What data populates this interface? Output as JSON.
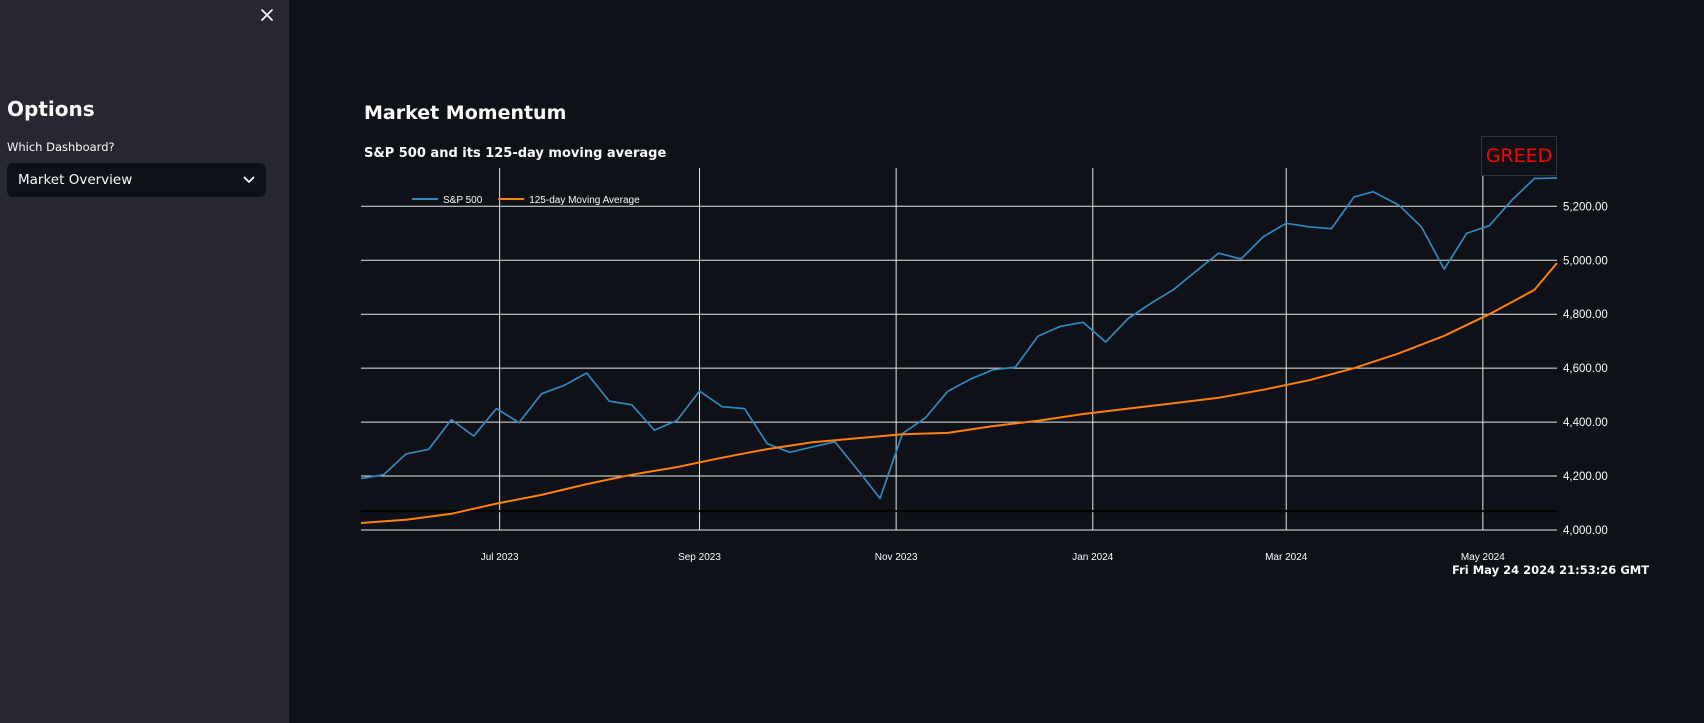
{
  "sidebar": {
    "title": "Options",
    "select_label": "Which Dashboard?",
    "select_value": "Market Overview"
  },
  "main": {
    "title": "Market Momentum",
    "sentiment_badge": "GREED",
    "timestamp": "Fri May 24 2024 21:53:26 GMT"
  },
  "colors": {
    "sp500": "#3288bd",
    "moving_average": "#ff7f0e",
    "badge": "#ff0000"
  },
  "chart_data": {
    "type": "line",
    "title": "S&P 500 and its 125-day moving average",
    "x_range": [
      "2023-05-19",
      "2024-05-24"
    ],
    "ylim": [
      4000,
      5342
    ],
    "y_ticks": [
      4000,
      4200,
      4400,
      4600,
      4800,
      5000,
      5200
    ],
    "y_tick_labels": [
      "4,000.00",
      "4,200.00",
      "4,400.00",
      "4,600.00",
      "4,800.00",
      "5,000.00",
      "5,200.00"
    ],
    "x_ticks": [
      "2023-07-01",
      "2023-09-01",
      "2023-11-01",
      "2024-01-01",
      "2024-03-01",
      "2024-05-01"
    ],
    "x_tick_labels": [
      "Jul 2023",
      "Sep 2023",
      "Nov 2023",
      "Jan 2024",
      "Mar 2024",
      "May 2024"
    ],
    "grid": true,
    "reference_line": 4070,
    "legend_position": "top-left",
    "series": [
      {
        "name": "S&P 500",
        "x": [
          "2023-05-19",
          "2023-05-26",
          "2023-06-02",
          "2023-06-09",
          "2023-06-16",
          "2023-06-23",
          "2023-06-30",
          "2023-07-07",
          "2023-07-14",
          "2023-07-21",
          "2023-07-28",
          "2023-08-04",
          "2023-08-11",
          "2023-08-18",
          "2023-08-25",
          "2023-09-01",
          "2023-09-08",
          "2023-09-15",
          "2023-09-22",
          "2023-09-29",
          "2023-10-06",
          "2023-10-13",
          "2023-10-20",
          "2023-10-27",
          "2023-11-03",
          "2023-11-10",
          "2023-11-17",
          "2023-11-24",
          "2023-12-01",
          "2023-12-08",
          "2023-12-15",
          "2023-12-22",
          "2023-12-29",
          "2024-01-05",
          "2024-01-12",
          "2024-01-19",
          "2024-01-26",
          "2024-02-02",
          "2024-02-09",
          "2024-02-16",
          "2024-02-23",
          "2024-03-01",
          "2024-03-08",
          "2024-03-15",
          "2024-03-22",
          "2024-03-28",
          "2024-04-05",
          "2024-04-12",
          "2024-04-19",
          "2024-04-26",
          "2024-05-03",
          "2024-05-10",
          "2024-05-17",
          "2024-05-24"
        ],
        "y": [
          4191,
          4205,
          4282,
          4299,
          4409,
          4348,
          4450,
          4398,
          4505,
          4536,
          4582,
          4478,
          4464,
          4370,
          4406,
          4515,
          4457,
          4450,
          4320,
          4288,
          4308,
          4327,
          4224,
          4117,
          4358,
          4415,
          4514,
          4559,
          4594,
          4604,
          4719,
          4755,
          4770,
          4697,
          4784,
          4840,
          4891,
          4959,
          5026,
          5005,
          5088,
          5137,
          5124,
          5117,
          5234,
          5254,
          5204,
          5123,
          4967,
          5100,
          5128,
          5223,
          5303,
          5305
        ]
      },
      {
        "name": "125-day Moving Average",
        "x": [
          "2023-05-19",
          "2023-06-02",
          "2023-06-16",
          "2023-06-30",
          "2023-07-14",
          "2023-07-28",
          "2023-08-11",
          "2023-08-25",
          "2023-09-08",
          "2023-09-22",
          "2023-10-06",
          "2023-10-20",
          "2023-11-03",
          "2023-11-17",
          "2023-12-01",
          "2023-12-15",
          "2023-12-29",
          "2024-01-12",
          "2024-01-26",
          "2024-02-09",
          "2024-02-23",
          "2024-03-08",
          "2024-03-22",
          "2024-04-05",
          "2024-04-19",
          "2024-05-03",
          "2024-05-17",
          "2024-05-24"
        ],
        "y": [
          4026,
          4038,
          4060,
          4098,
          4130,
          4170,
          4205,
          4233,
          4268,
          4300,
          4325,
          4340,
          4355,
          4360,
          4385,
          4405,
          4430,
          4450,
          4470,
          4490,
          4520,
          4555,
          4600,
          4655,
          4720,
          4800,
          4890,
          4990
        ]
      }
    ]
  }
}
